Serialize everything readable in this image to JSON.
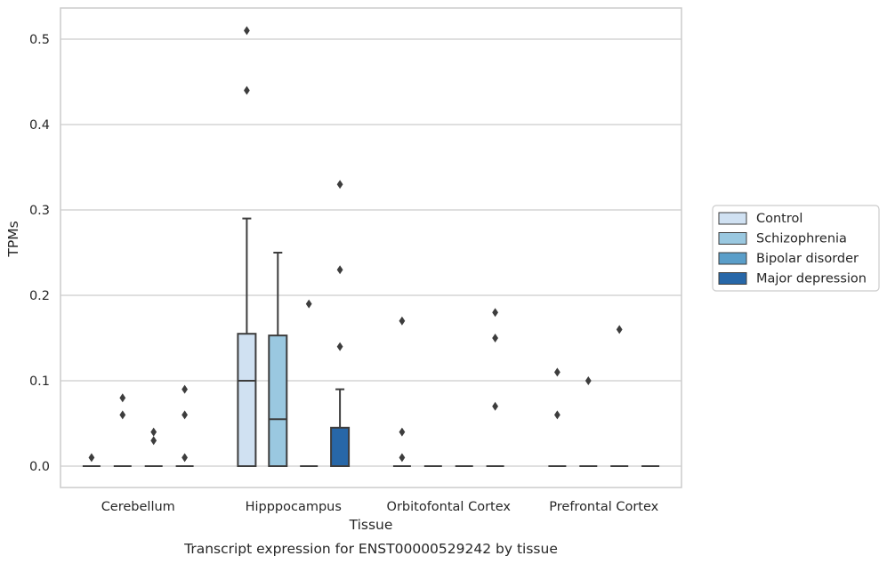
{
  "chart_data": {
    "type": "boxplot",
    "caption": "Transcript expression for ENST00000529242 by tissue",
    "xlabel": "Tissue",
    "ylabel": "TPMs",
    "ylim": [
      -0.025,
      0.537
    ],
    "yticks": [
      "0.0",
      "0.1",
      "0.2",
      "0.3",
      "0.4",
      "0.5"
    ],
    "ytick_values": [
      0.0,
      0.1,
      0.2,
      0.3,
      0.4,
      0.5
    ],
    "grid": true,
    "legend_position": "right",
    "categories": [
      "Cerebellum",
      "Hipppocampus",
      "Orbitofontal Cortex",
      "Prefrontal Cortex"
    ],
    "series": [
      {
        "name": "Control",
        "color": "#d0e1f2",
        "boxes": [
          {
            "q1": 0,
            "median": 0,
            "q3": 0,
            "whisker_low": 0,
            "whisker_high": 0,
            "outliers": [
              0.01
            ]
          },
          {
            "q1": 0,
            "median": 0.1,
            "q3": 0.155,
            "whisker_low": 0,
            "whisker_high": 0.29,
            "outliers": [
              0.44,
              0.51
            ]
          },
          {
            "q1": 0,
            "median": 0,
            "q3": 0,
            "whisker_low": 0,
            "whisker_high": 0,
            "outliers": [
              0.01,
              0.04,
              0.17
            ]
          },
          {
            "q1": 0,
            "median": 0,
            "q3": 0,
            "whisker_low": 0,
            "whisker_high": 0,
            "outliers": [
              0.06,
              0.11
            ]
          }
        ]
      },
      {
        "name": "Schizophrenia",
        "color": "#9ac8e0",
        "boxes": [
          {
            "q1": 0,
            "median": 0,
            "q3": 0,
            "whisker_low": 0,
            "whisker_high": 0,
            "outliers": [
              0.06,
              0.08
            ]
          },
          {
            "q1": 0,
            "median": 0.055,
            "q3": 0.153,
            "whisker_low": 0,
            "whisker_high": 0.25,
            "outliers": []
          },
          {
            "q1": 0,
            "median": 0,
            "q3": 0,
            "whisker_low": 0,
            "whisker_high": 0,
            "outliers": []
          },
          {
            "q1": 0,
            "median": 0,
            "q3": 0,
            "whisker_low": 0,
            "whisker_high": 0,
            "outliers": [
              0.1
            ]
          }
        ]
      },
      {
        "name": "Bipolar disorder",
        "color": "#5a9ec9",
        "boxes": [
          {
            "q1": 0,
            "median": 0,
            "q3": 0,
            "whisker_low": 0,
            "whisker_high": 0,
            "outliers": [
              0.03,
              0.04
            ]
          },
          {
            "q1": 0,
            "median": 0,
            "q3": 0,
            "whisker_low": 0,
            "whisker_high": 0,
            "outliers": [
              0.19
            ]
          },
          {
            "q1": 0,
            "median": 0,
            "q3": 0,
            "whisker_low": 0,
            "whisker_high": 0,
            "outliers": []
          },
          {
            "q1": 0,
            "median": 0,
            "q3": 0,
            "whisker_low": 0,
            "whisker_high": 0,
            "outliers": [
              0.16
            ]
          }
        ]
      },
      {
        "name": "Major depression",
        "color": "#2767a8",
        "boxes": [
          {
            "q1": 0,
            "median": 0,
            "q3": 0,
            "whisker_low": 0,
            "whisker_high": 0,
            "outliers": [
              0.01,
              0.06,
              0.09
            ]
          },
          {
            "q1": 0,
            "median": 0,
            "q3": 0.045,
            "whisker_low": 0,
            "whisker_high": 0.09,
            "outliers": [
              0.14,
              0.23,
              0.33
            ]
          },
          {
            "q1": 0,
            "median": 0,
            "q3": 0,
            "whisker_low": 0,
            "whisker_high": 0,
            "outliers": [
              0.07,
              0.15,
              0.18
            ]
          },
          {
            "q1": 0,
            "median": 0,
            "q3": 0,
            "whisker_low": 0,
            "whisker_high": 0,
            "outliers": []
          }
        ]
      }
    ]
  }
}
